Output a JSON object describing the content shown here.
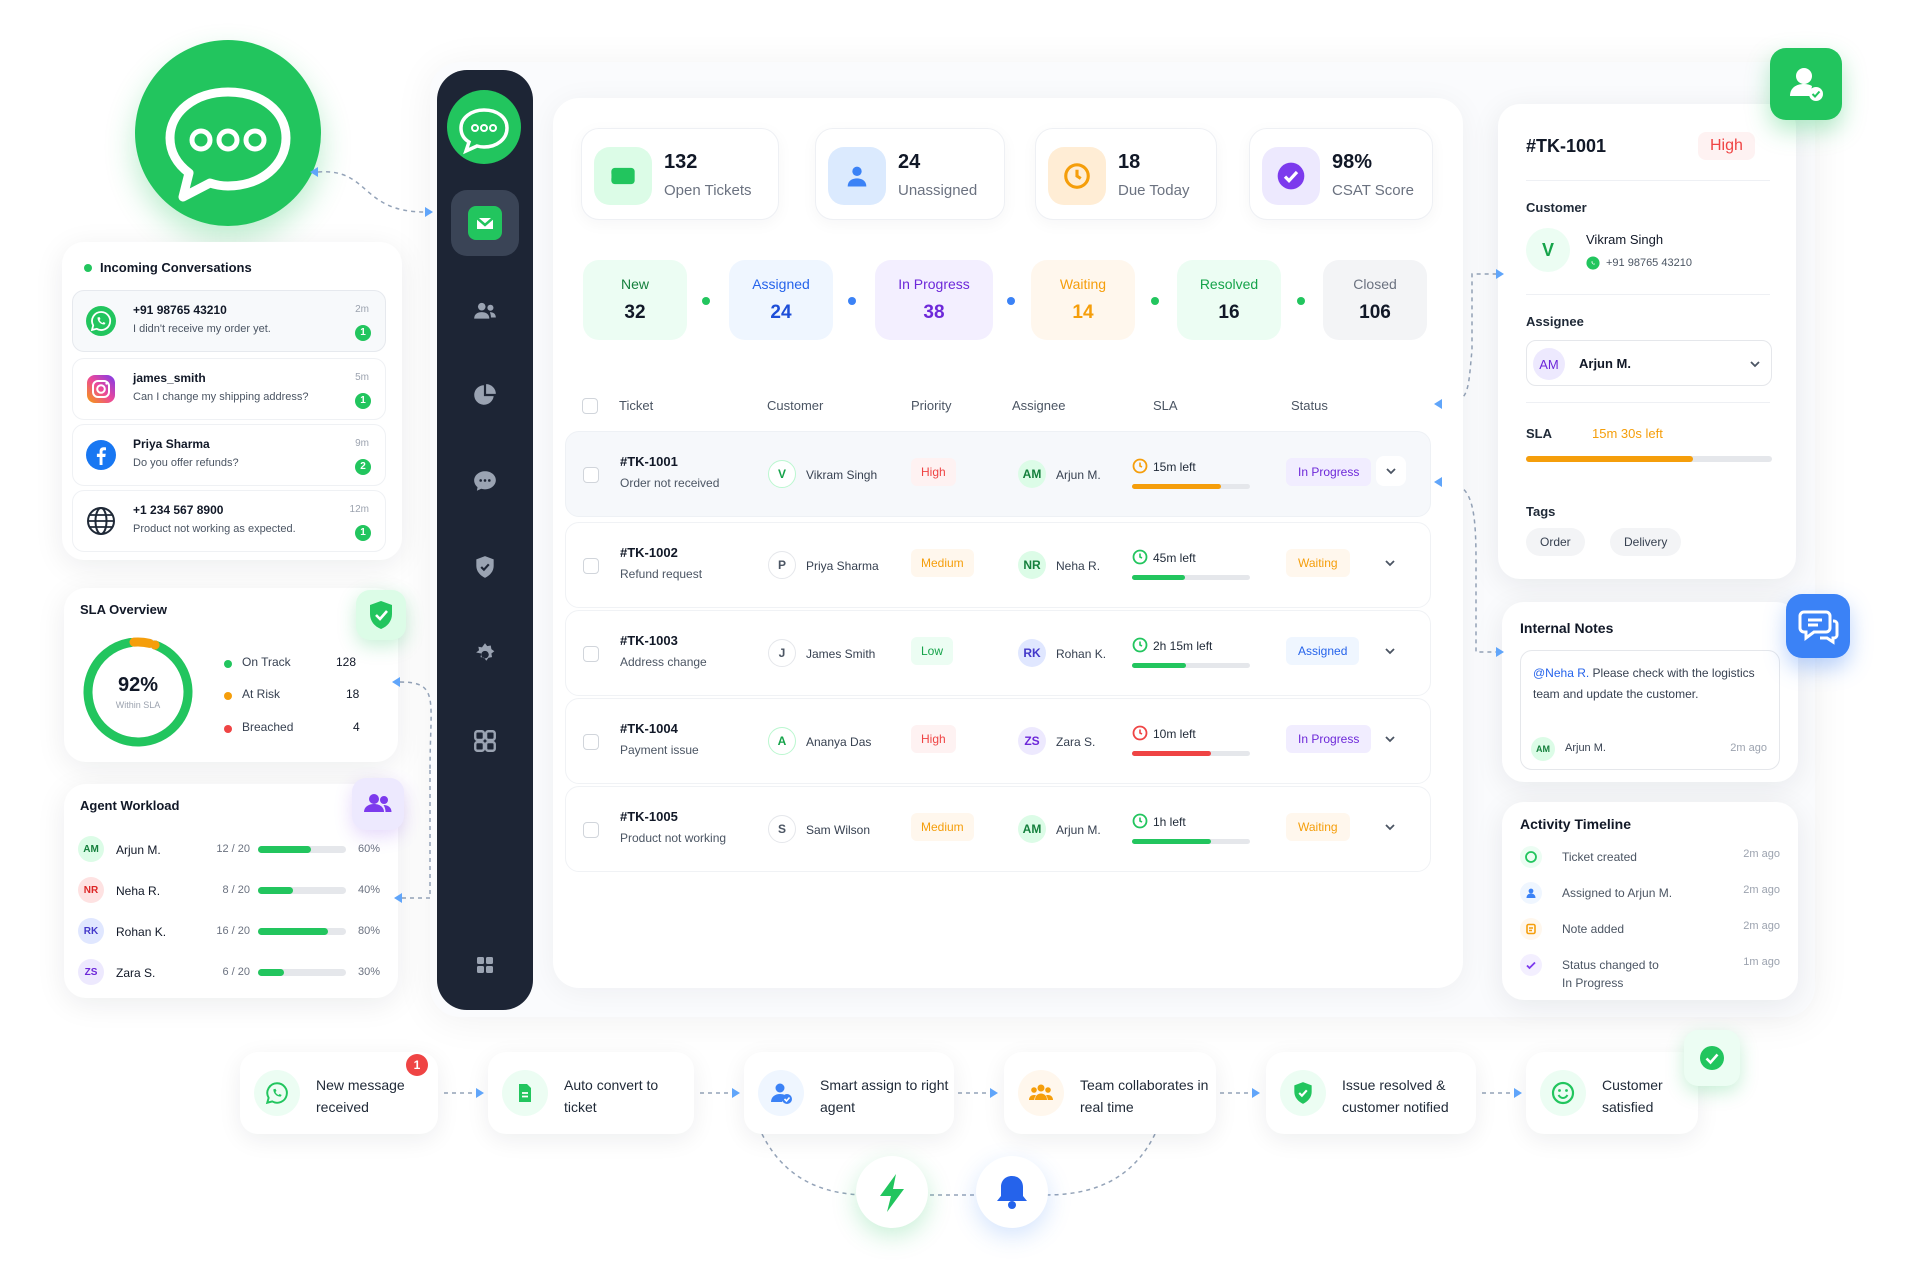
{
  "colors": {
    "brand": "#22c55e",
    "sidebar": "#1d2535",
    "warning": "#f59e0b",
    "danger": "#ef4444",
    "purple": "#7c3aed",
    "blue": "#3b82f6"
  },
  "stats": [
    {
      "value": "132",
      "label": "Open Tickets",
      "icon": "ticket-icon"
    },
    {
      "value": "24",
      "label": "Unassigned",
      "icon": "user-icon"
    },
    {
      "value": "18",
      "label": "Due Today",
      "icon": "clock-icon"
    },
    {
      "value": "98%",
      "label": "CSAT Score",
      "icon": "check-badge-icon"
    }
  ],
  "pipeline": [
    {
      "label": "New",
      "count": "32"
    },
    {
      "label": "Assigned",
      "count": "24"
    },
    {
      "label": "In Progress",
      "count": "38"
    },
    {
      "label": "Waiting",
      "count": "14"
    },
    {
      "label": "Resolved",
      "count": "16"
    },
    {
      "label": "Closed",
      "count": "106"
    }
  ],
  "table": {
    "headers": {
      "ticket": "Ticket",
      "customer": "Customer",
      "priority": "Priority",
      "assignee": "Assignee",
      "sla": "SLA",
      "status": "Status"
    },
    "rows": [
      {
        "id": "#TK-1001",
        "subject": "Order not received",
        "initial": "V",
        "customer": "Vikram Singh",
        "priority": "High",
        "assignee_initials": "AM",
        "assignee": "Arjun M.",
        "sla": "15m left",
        "sla_progress": 0.75,
        "status": "In Progress"
      },
      {
        "id": "#TK-1002",
        "subject": "Refund request",
        "initial": "P",
        "customer": "Priya Sharma",
        "priority": "Medium",
        "assignee_initials": "NR",
        "assignee": "Neha R.",
        "sla": "45m left",
        "sla_progress": 0.45,
        "status": "Waiting"
      },
      {
        "id": "#TK-1003",
        "subject": "Address change",
        "initial": "J",
        "customer": "James Smith",
        "priority": "Low",
        "assignee_initials": "RK",
        "assignee": "Rohan K.",
        "sla": "2h 15m left",
        "sla_progress": 0.46,
        "status": "Assigned"
      },
      {
        "id": "#TK-1004",
        "subject": "Payment issue",
        "initial": "A",
        "customer": "Ananya Das",
        "priority": "High",
        "assignee_initials": "ZS",
        "assignee": "Zara S.",
        "sla": "10m left",
        "sla_progress": 0.67,
        "status": "In Progress"
      },
      {
        "id": "#TK-1005",
        "subject": "Product not working",
        "initial": "S",
        "customer": "Sam Wilson",
        "priority": "Medium",
        "assignee_initials": "AM",
        "assignee": "Arjun M.",
        "sla": "1h left",
        "sla_progress": 0.67,
        "status": "Waiting"
      }
    ]
  },
  "conversations": {
    "title": "Incoming Conversations",
    "items": [
      {
        "channel": "whatsapp-icon",
        "name": "+91 98765 43210",
        "message": "I didn't receive my order yet.",
        "time": "2m",
        "unread": "1"
      },
      {
        "channel": "instagram-icon",
        "name": "james_smith",
        "message": "Can I change my shipping address?",
        "time": "5m",
        "unread": "1"
      },
      {
        "channel": "facebook-icon",
        "name": "Priya Sharma",
        "message": "Do you offer refunds?",
        "time": "9m",
        "unread": "2"
      },
      {
        "channel": "globe-icon",
        "name": "+1 234 567 8900",
        "message": "Product not working as expected.",
        "time": "12m",
        "unread": "1"
      }
    ]
  },
  "sla_overview": {
    "title": "SLA Overview",
    "percent": "92%",
    "percent_value": 0.92,
    "caption": "Within SLA",
    "items": [
      {
        "label": "On Track",
        "value": "128"
      },
      {
        "label": "At Risk",
        "value": "18"
      },
      {
        "label": "Breached",
        "value": "4"
      }
    ]
  },
  "workload": {
    "title": "Agent Workload",
    "agents": [
      {
        "initials": "AM",
        "name": "Arjun M.",
        "count": "12 / 20",
        "percent": "60%",
        "fraction": 0.6
      },
      {
        "initials": "NR",
        "name": "Neha R.",
        "count": "8 / 20",
        "percent": "40%",
        "fraction": 0.4
      },
      {
        "initials": "RK",
        "name": "Rohan K.",
        "count": "16 / 20",
        "percent": "80%",
        "fraction": 0.8
      },
      {
        "initials": "ZS",
        "name": "Zara S.",
        "count": "6 / 20",
        "percent": "30%",
        "fraction": 0.3
      }
    ]
  },
  "detail": {
    "id": "#TK-1001",
    "priority": "High",
    "customer_label": "Customer",
    "customer_initial": "V",
    "customer_name": "Vikram Singh",
    "customer_phone": "+91 98765 43210",
    "assignee_label": "Assignee",
    "assignee_initials": "AM",
    "assignee_name": "Arjun M.",
    "sla_label": "SLA",
    "sla_value": "15m 30s left",
    "sla_progress": 0.68,
    "tags_label": "Tags",
    "tags": [
      "Order",
      "Delivery"
    ]
  },
  "notes": {
    "title": "Internal Notes",
    "mention": "@Neha R.",
    "text": " Please check with the logistics team and update the customer.",
    "author_initials": "AM",
    "author": "Arjun M.",
    "time": "2m ago"
  },
  "timeline": {
    "title": "Activity Timeline",
    "events": [
      {
        "text": "Ticket created",
        "time": "2m ago"
      },
      {
        "text": "Assigned to Arjun M.",
        "time": "2m ago"
      },
      {
        "text": "Note added",
        "time": "2m ago"
      },
      {
        "text": "Status changed to In Progress",
        "time": "1m ago"
      }
    ]
  },
  "flow": [
    {
      "text": "New message received",
      "badge": "1"
    },
    {
      "text": "Auto convert to ticket"
    },
    {
      "text": "Smart assign to right agent"
    },
    {
      "text": "Team collaborates in real time"
    },
    {
      "text": "Issue resolved & customer notified"
    },
    {
      "text": "Customer satisfied"
    }
  ]
}
